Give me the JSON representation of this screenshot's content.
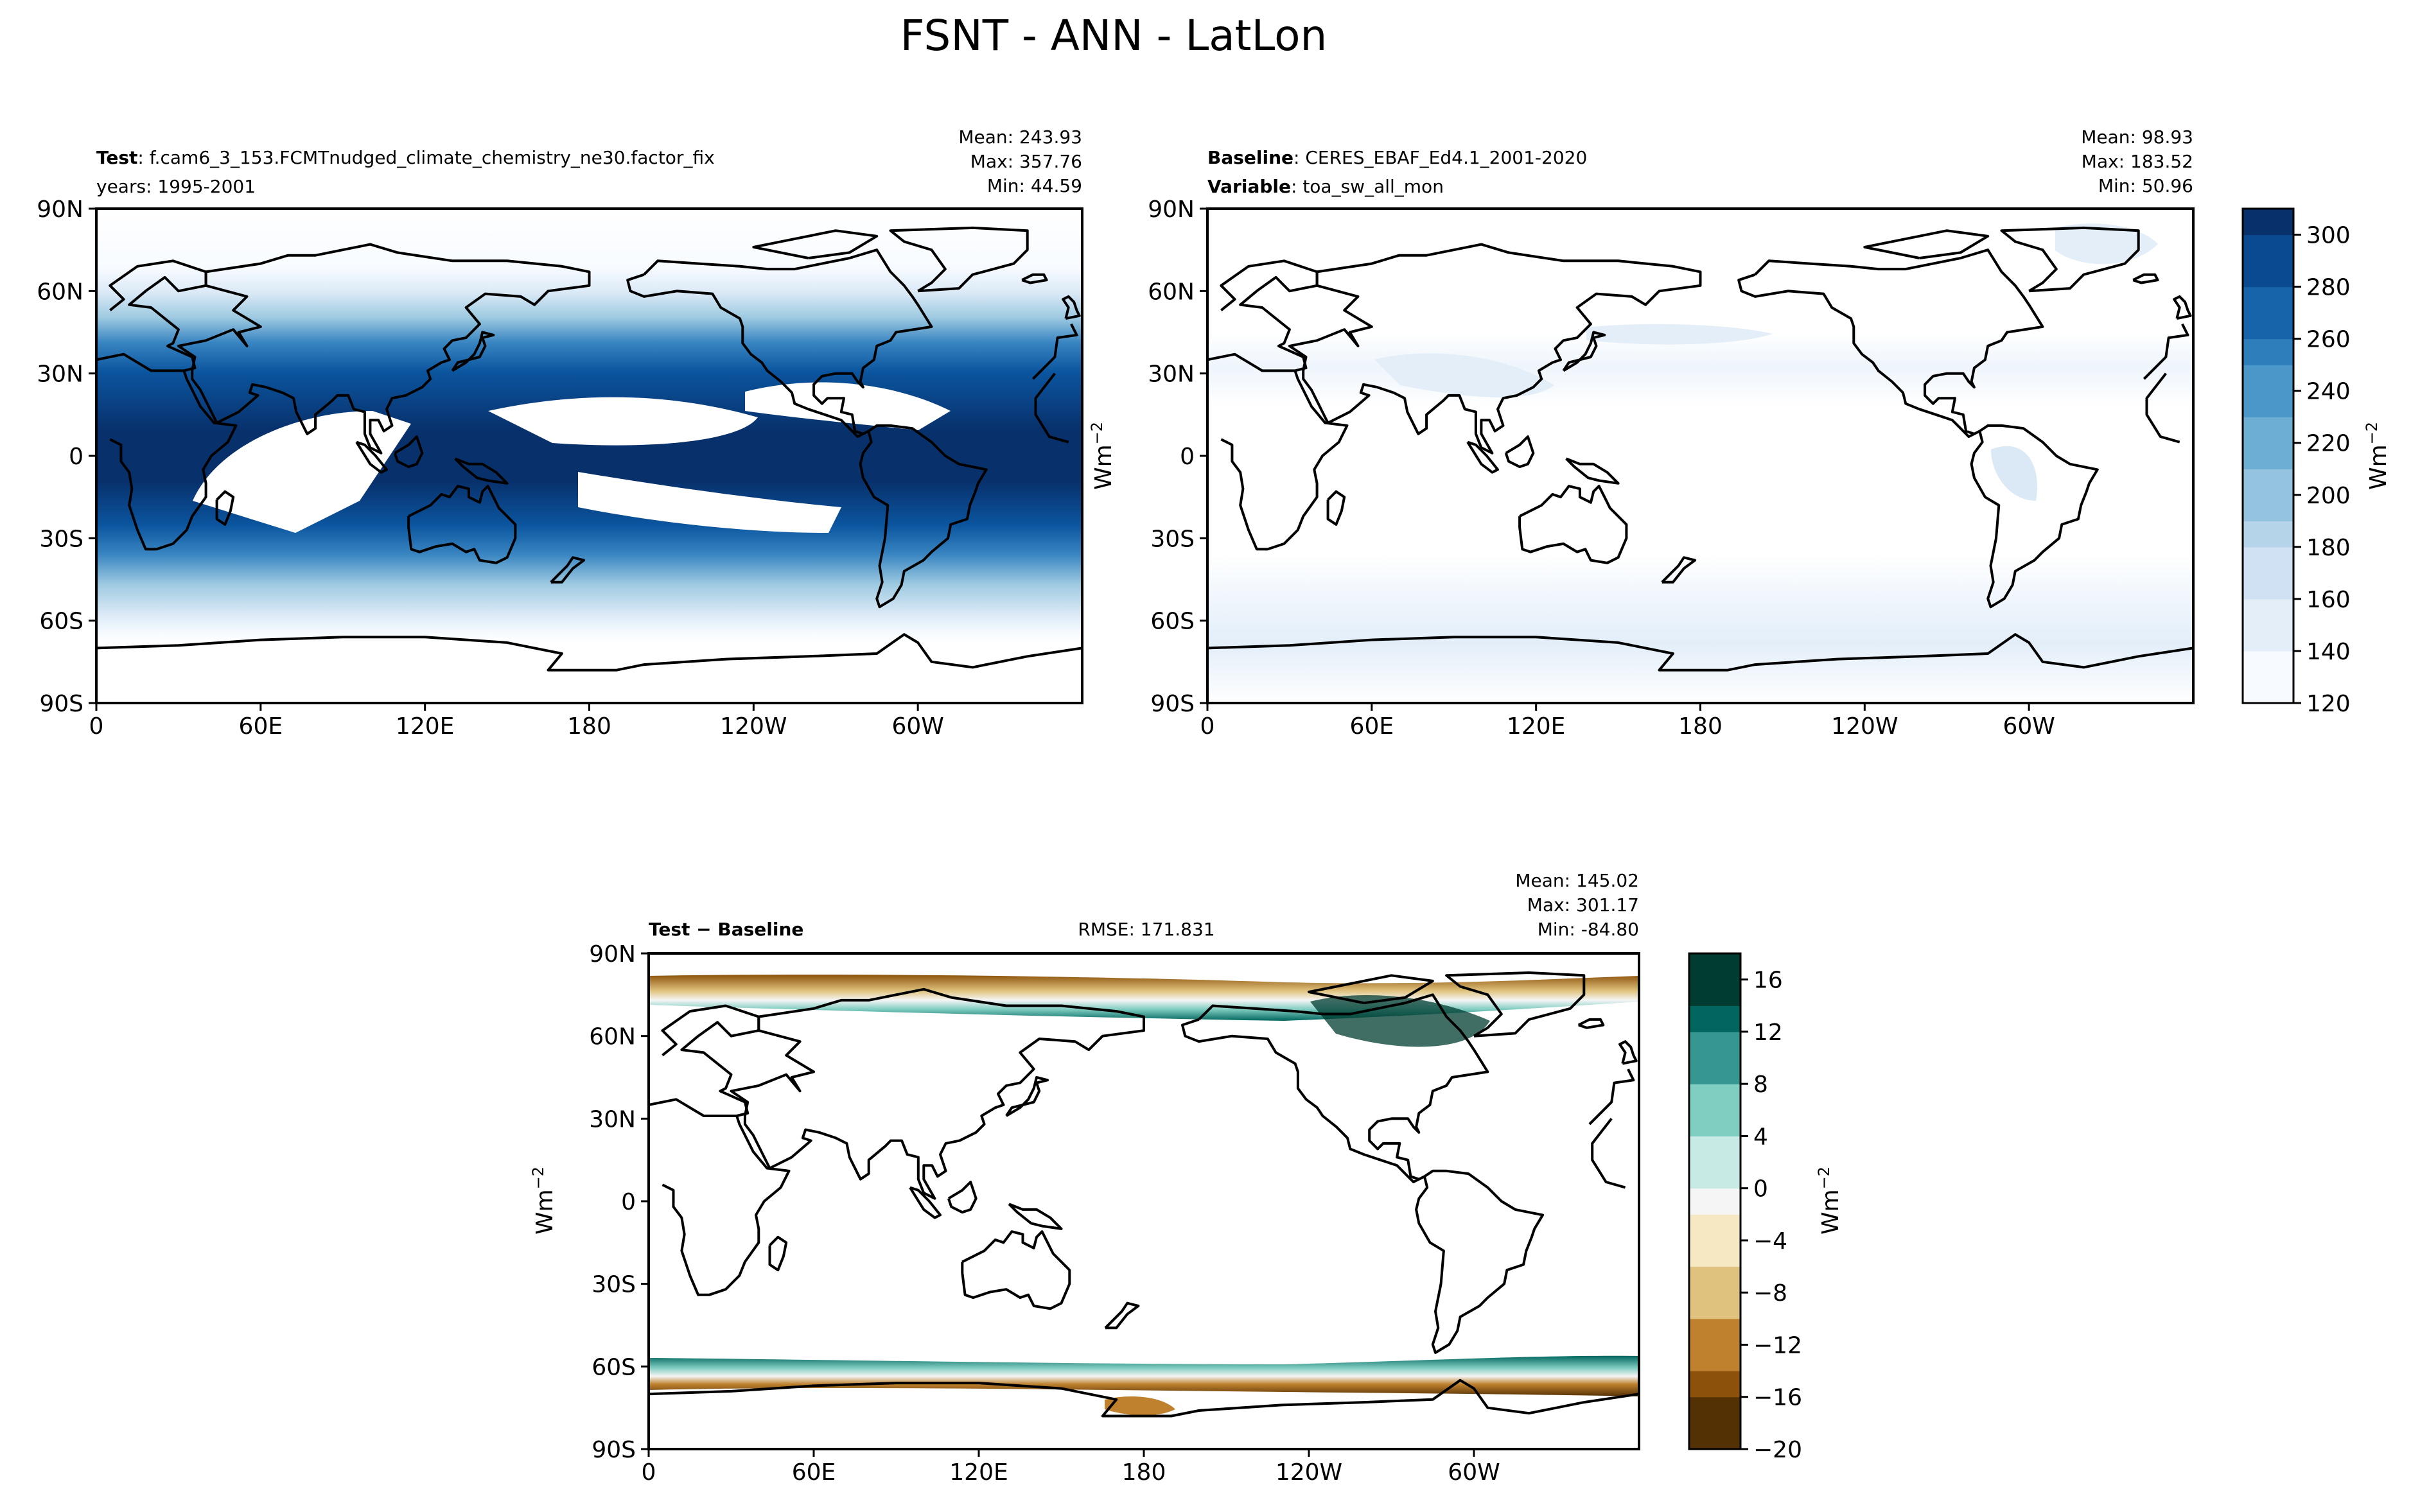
{
  "figure": {
    "title": "FSNT - ANN - LatLon"
  },
  "colors": {
    "frame": "#000000",
    "coast": "#000000",
    "blues": [
      "#f7fbff",
      "#e3eef9",
      "#cfe1f2",
      "#b5d4e9",
      "#93c3df",
      "#6daed5",
      "#4b97c9",
      "#2f7ebc",
      "#1864aa",
      "#0a4a90",
      "#08306b"
    ],
    "brbg": [
      "#543005",
      "#8c510a",
      "#bf812d",
      "#dfc27d",
      "#f6e8c3",
      "#f5f5f5",
      "#c7eae5",
      "#80cdc1",
      "#35978f",
      "#01665e",
      "#003c30"
    ]
  },
  "chart_data": [
    {
      "type": "heatmap",
      "name": "test",
      "label_bold": "Test",
      "label_text": "f.cam6_3_153.FCMTnudged_climate_chemistry_ne30.factor_fix",
      "subtitle": "years: 1995-2001",
      "stats": [
        "Mean: 243.93",
        "Max: 357.76",
        "Min: 44.59"
      ],
      "x_ticks": [
        "0",
        "60E",
        "120E",
        "180",
        "120W",
        "60W"
      ],
      "y_ticks": [
        "90N",
        "60N",
        "30N",
        "0",
        "30S",
        "60S",
        "90S"
      ],
      "value_range": [
        120,
        310
      ],
      "description": "High absorbed shortwave in tropics and subtropics, lower at high latitudes"
    },
    {
      "type": "heatmap",
      "name": "baseline",
      "label_bold_1": "Baseline",
      "label_text_1": "CERES_EBAF_Ed4.1_2001-2020",
      "label_bold_2": "Variable",
      "label_text_2": "toa_sw_all_mon",
      "stats": [
        "Mean: 98.93",
        "Max: 183.52",
        "Min: 50.96"
      ],
      "x_ticks": [
        "0",
        "60E",
        "120E",
        "180",
        "120W",
        "60W"
      ],
      "y_ticks": [
        "90N",
        "60N",
        "30N",
        "0",
        "30S",
        "60S",
        "90S"
      ],
      "value_range": [
        120,
        310
      ]
    },
    {
      "type": "colorbar",
      "name": "blues-colorbar",
      "ticks": [
        "120",
        "140",
        "160",
        "180",
        "200",
        "220",
        "240",
        "260",
        "280",
        "300"
      ],
      "range": [
        120,
        310
      ],
      "label": "Wm",
      "label_exp": "−2"
    },
    {
      "type": "heatmap",
      "name": "difference",
      "label_bold": "Test − Baseline",
      "rmse": "RMSE: 171.831",
      "stats": [
        "Mean: 145.02",
        "Max: 301.17",
        "Min: -84.80"
      ],
      "x_ticks": [
        "0",
        "60E",
        "120E",
        "180",
        "120W",
        "60W"
      ],
      "y_ticks": [
        "90N",
        "60N",
        "30N",
        "0",
        "30S",
        "60S",
        "90S"
      ],
      "value_range": [
        -20,
        18
      ]
    },
    {
      "type": "colorbar",
      "name": "brbg-colorbar",
      "ticks": [
        "−20",
        "−16",
        "−12",
        "−8",
        "−4",
        "0",
        "4",
        "8",
        "12",
        "16"
      ],
      "tick_values": [
        -20,
        -16,
        -12,
        -8,
        -4,
        0,
        4,
        8,
        12,
        16
      ],
      "range": [
        -20,
        18
      ],
      "label": "Wm",
      "label_exp": "−2"
    }
  ]
}
